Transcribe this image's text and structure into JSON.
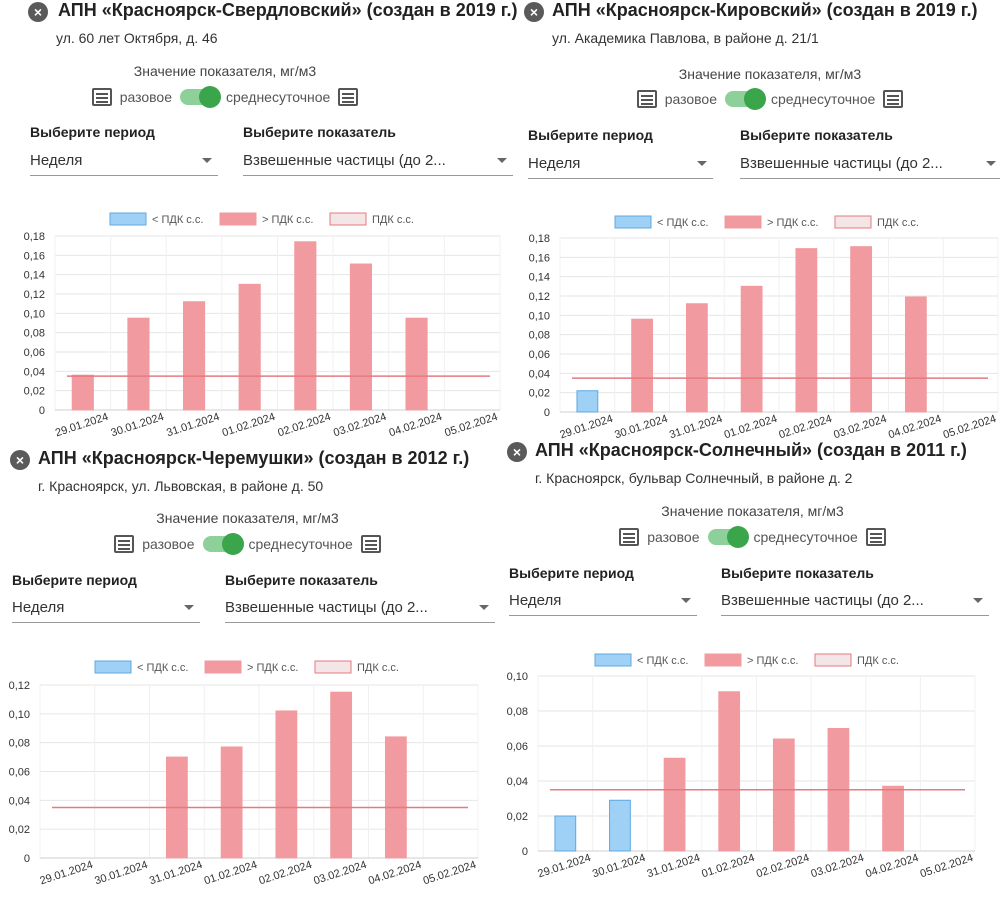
{
  "common": {
    "indicator_label": "Значение показателя, мг/м3",
    "toggle_left": "разовое",
    "toggle_right": "среднесуточное",
    "period_title": "Выберите период",
    "period_value": "Неделя",
    "indicator_title": "Выберите показатель",
    "indicator_value": "Взвешенные частицы (до 2...",
    "legend": [
      "< ПДК с.с.",
      "> ПДК с.с.",
      "ПДК с.с."
    ],
    "colors": {
      "below": "#9fd0f5",
      "below_border": "#5fa8e0",
      "above": "#f19ba0",
      "limit_line": "#e57a80",
      "limit_fill": "#f4e6e6",
      "toggle_on": "#3aa54a"
    }
  },
  "panels": [
    {
      "title": "АПН «Красноярск-Свердловский» (создан в 2019 г.)",
      "address": "ул. 60 лет Октября, д. 46",
      "chart_data": {
        "type": "bar",
        "categories": [
          "29.01.2024",
          "30.01.2024",
          "31.01.2024",
          "01.02.2024",
          "02.02.2024",
          "03.02.2024",
          "04.02.2024",
          "05.02.2024"
        ],
        "values": [
          0.036,
          0.095,
          0.112,
          0.13,
          0.174,
          0.151,
          0.095,
          null
        ],
        "status": [
          "above",
          "above",
          "above",
          "above",
          "above",
          "above",
          "above",
          null
        ],
        "limit": 0.035,
        "ylim": [
          0,
          0.18
        ],
        "yticks": [
          "0",
          "0,02",
          "0,04",
          "0,06",
          "0,08",
          "0,10",
          "0,12",
          "0,14",
          "0,16",
          "0,18"
        ],
        "legend": [
          "< ПДК с.с.",
          "> ПДК с.с.",
          "ПДК с.с."
        ],
        "grid": true,
        "legend_position": "top"
      }
    },
    {
      "title": "АПН «Красноярск-Кировский» (создан в 2019 г.)",
      "address": "ул. Академика Павлова, в районе д. 21/1",
      "chart_data": {
        "type": "bar",
        "categories": [
          "29.01.2024",
          "30.01.2024",
          "31.01.2024",
          "01.02.2024",
          "02.02.2024",
          "03.02.2024",
          "04.02.2024",
          "05.02.2024"
        ],
        "values": [
          0.022,
          0.096,
          0.112,
          0.13,
          0.169,
          0.171,
          0.119,
          null
        ],
        "status": [
          "below",
          "above",
          "above",
          "above",
          "above",
          "above",
          "above",
          null
        ],
        "limit": 0.035,
        "ylim": [
          0,
          0.18
        ],
        "yticks": [
          "0",
          "0,02",
          "0,04",
          "0,06",
          "0,08",
          "0,10",
          "0,12",
          "0,14",
          "0,16",
          "0,18"
        ],
        "legend": [
          "< ПДК с.с.",
          "> ПДК с.с.",
          "ПДК с.с."
        ],
        "grid": true,
        "legend_position": "top"
      }
    },
    {
      "title": "АПН «Красноярск-Черемушки» (создан в 2012 г.)",
      "address": "г. Красноярск, ул. Львовская, в районе д. 50",
      "chart_data": {
        "type": "bar",
        "categories": [
          "29.01.2024",
          "30.01.2024",
          "31.01.2024",
          "01.02.2024",
          "02.02.2024",
          "03.02.2024",
          "04.02.2024",
          "05.02.2024"
        ],
        "values": [
          null,
          null,
          0.07,
          0.077,
          0.102,
          0.115,
          0.084,
          null
        ],
        "status": [
          null,
          null,
          "above",
          "above",
          "above",
          "above",
          "above",
          null
        ],
        "limit": 0.035,
        "ylim": [
          0,
          0.12
        ],
        "yticks": [
          "0",
          "0,02",
          "0,04",
          "0,06",
          "0,08",
          "0,10",
          "0,12"
        ],
        "legend": [
          "< ПДК с.с.",
          "> ПДК с.с.",
          "ПДК с.с."
        ],
        "grid": true,
        "legend_position": "top"
      }
    },
    {
      "title": "АПН «Красноярск-Солнечный» (создан в 2011 г.)",
      "address": "г. Красноярск, бульвар Солнечный, в районе д. 2",
      "chart_data": {
        "type": "bar",
        "categories": [
          "29.01.2024",
          "30.01.2024",
          "31.01.2024",
          "01.02.2024",
          "02.02.2024",
          "03.02.2024",
          "04.02.2024",
          "05.02.2024"
        ],
        "values": [
          0.02,
          0.029,
          0.053,
          0.091,
          0.064,
          0.07,
          0.037,
          null
        ],
        "status": [
          "below",
          "below",
          "above",
          "above",
          "above",
          "above",
          "above",
          null
        ],
        "limit": 0.035,
        "ylim": [
          0,
          0.1
        ],
        "yticks": [
          "0",
          "0,02",
          "0,04",
          "0,06",
          "0,08",
          "0,10"
        ],
        "legend": [
          "< ПДК с.с.",
          "> ПДК с.с.",
          "ПДК с.с."
        ],
        "grid": true,
        "legend_position": "top"
      }
    }
  ]
}
